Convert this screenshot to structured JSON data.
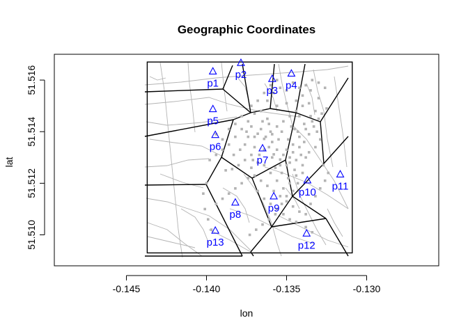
{
  "chart_data": {
    "type": "scatter",
    "title": "Geographic Coordinates",
    "xlabel": "lon",
    "ylabel": "lat",
    "xlim": [
      -0.1495,
      -0.1255
    ],
    "ylim": [
      51.5088,
      51.517
    ],
    "xticks": [
      -0.145,
      -0.14,
      -0.135,
      -0.13
    ],
    "xtick_labels": [
      "-0.145",
      "-0.140",
      "-0.135",
      "-0.130"
    ],
    "yticks": [
      51.51,
      51.512,
      51.514,
      51.516
    ],
    "ytick_labels": [
      "51.510",
      "51.512",
      "51.514",
      "51.516"
    ],
    "grid": false,
    "bounding_box": {
      "lon": [
        -0.1437,
        -0.1309
      ],
      "lat": [
        51.5093,
        51.5167
      ]
    },
    "pumps": {
      "marker": "triangle",
      "color": "#0000ff",
      "points": [
        {
          "label": "p1",
          "lon": -0.1396,
          "lat": 51.51634
        },
        {
          "label": "p2",
          "lon": -0.13785,
          "lat": 51.51667
        },
        {
          "label": "p3",
          "lon": -0.1359,
          "lat": 51.51605
        },
        {
          "label": "p4",
          "lon": -0.1347,
          "lat": 51.51626
        },
        {
          "label": "p5",
          "lon": -0.1396,
          "lat": 51.51488
        },
        {
          "label": "p6",
          "lon": -0.13945,
          "lat": 51.51388
        },
        {
          "label": "p7",
          "lon": -0.1365,
          "lat": 51.51336
        },
        {
          "label": "p8",
          "lon": -0.1382,
          "lat": 51.51126
        },
        {
          "label": "p9",
          "lon": -0.1358,
          "lat": 51.5115
        },
        {
          "label": "p10",
          "lon": -0.1337,
          "lat": 51.51212
        },
        {
          "label": "p11",
          "lon": -0.13165,
          "lat": 51.51235
        },
        {
          "label": "p12",
          "lon": -0.13375,
          "lat": 51.51006
        },
        {
          "label": "p13",
          "lon": -0.13945,
          "lat": 51.51017
        }
      ]
    },
    "cases": {
      "color": "#b3b3b3",
      "points": [
        [
          -0.1368,
          51.51392
        ],
        [
          -0.1364,
          51.51372
        ],
        [
          -0.1361,
          51.5134
        ],
        [
          -0.1358,
          51.51312
        ],
        [
          -0.1354,
          51.51292
        ],
        [
          -0.135,
          51.5127
        ],
        [
          -0.1345,
          51.51252
        ],
        [
          -0.137,
          51.5134
        ],
        [
          -0.1372,
          51.5131
        ],
        [
          -0.1376,
          51.5129
        ],
        [
          -0.138,
          51.5127
        ],
        [
          -0.1384,
          51.51255
        ],
        [
          -0.1388,
          51.5125
        ],
        [
          -0.1372,
          51.5126
        ],
        [
          -0.137,
          51.5123
        ],
        [
          -0.1366,
          51.5121
        ],
        [
          -0.1362,
          51.5119
        ],
        [
          -0.1358,
          51.5117
        ],
        [
          -0.1354,
          51.5115
        ],
        [
          -0.135,
          51.5113
        ],
        [
          -0.1346,
          51.5111
        ],
        [
          -0.1342,
          51.5109
        ],
        [
          -0.136,
          51.514
        ],
        [
          -0.1356,
          51.5142
        ],
        [
          -0.1352,
          51.5144
        ],
        [
          -0.1348,
          51.5146
        ],
        [
          -0.1344,
          51.5148
        ],
        [
          -0.134,
          51.515
        ],
        [
          -0.1336,
          51.5151
        ],
        [
          -0.1332,
          51.5148
        ],
        [
          -0.1334,
          51.5144
        ],
        [
          -0.1338,
          51.5141
        ],
        [
          -0.1342,
          51.5138
        ],
        [
          -0.1346,
          51.5135
        ],
        [
          -0.135,
          51.5133
        ],
        [
          -0.1355,
          51.5137
        ],
        [
          -0.1362,
          51.5145
        ],
        [
          -0.1366,
          51.5148
        ],
        [
          -0.137,
          51.5147
        ],
        [
          -0.1374,
          51.5144
        ],
        [
          -0.1378,
          51.5141
        ],
        [
          -0.1382,
          51.5138
        ],
        [
          -0.1386,
          51.5135
        ],
        [
          -0.139,
          51.5133
        ],
        [
          -0.1394,
          51.5131
        ],
        [
          -0.1398,
          51.5129
        ],
        [
          -0.1374,
          51.5138
        ],
        [
          -0.1376,
          51.5135
        ],
        [
          -0.1379,
          51.5133
        ],
        [
          -0.1383,
          51.5131
        ],
        [
          -0.1366,
          51.5141
        ],
        [
          -0.1363,
          51.5138
        ],
        [
          -0.1359,
          51.5136
        ],
        [
          -0.1356,
          51.5133
        ],
        [
          -0.1352,
          51.5131
        ],
        [
          -0.1348,
          51.513
        ],
        [
          -0.1346,
          51.5132
        ],
        [
          -0.1342,
          51.5134
        ],
        [
          -0.1339,
          51.5136
        ],
        [
          -0.1336,
          51.5139
        ],
        [
          -0.1333,
          51.5142
        ],
        [
          -0.133,
          51.5145
        ],
        [
          -0.1328,
          51.5147
        ],
        [
          -0.1325,
          51.5149
        ],
        [
          -0.133,
          51.5153
        ],
        [
          -0.1335,
          51.5156
        ],
        [
          -0.134,
          51.5154
        ],
        [
          -0.1344,
          51.5152
        ],
        [
          -0.135,
          51.5151
        ],
        [
          -0.1356,
          51.515
        ],
        [
          -0.1362,
          51.5152
        ],
        [
          -0.1358,
          51.5155
        ],
        [
          -0.1354,
          51.5157
        ],
        [
          -0.135,
          51.5156
        ],
        [
          -0.1346,
          51.5159
        ],
        [
          -0.1342,
          51.5146
        ],
        [
          -0.1338,
          51.513
        ],
        [
          -0.134,
          51.5127
        ],
        [
          -0.1344,
          51.5123
        ],
        [
          -0.1348,
          51.512
        ],
        [
          -0.1352,
          51.5118
        ],
        [
          -0.1356,
          51.5121
        ],
        [
          -0.136,
          51.5124
        ],
        [
          -0.1364,
          51.5127
        ],
        [
          -0.1368,
          51.5128
        ],
        [
          -0.1374,
          51.5122
        ],
        [
          -0.1378,
          51.512
        ],
        [
          -0.1382,
          51.5118
        ],
        [
          -0.1386,
          51.5116
        ],
        [
          -0.139,
          51.5114
        ],
        [
          -0.1394,
          51.5112
        ],
        [
          -0.1368,
          51.5117
        ],
        [
          -0.1364,
          51.5114
        ],
        [
          -0.136,
          51.5112
        ],
        [
          -0.1356,
          51.511
        ],
        [
          -0.1352,
          51.5108
        ],
        [
          -0.1348,
          51.5106
        ],
        [
          -0.1344,
          51.5105
        ],
        [
          -0.1338,
          51.5103
        ],
        [
          -0.1334,
          51.5101
        ],
        [
          -0.1394,
          51.5139
        ],
        [
          -0.139,
          51.5137
        ],
        [
          -0.1386,
          51.5141
        ],
        [
          -0.1382,
          51.5143
        ],
        [
          -0.1378,
          51.5146
        ],
        [
          -0.1372,
          51.515
        ],
        [
          -0.1368,
          51.5152
        ],
        [
          -0.1364,
          51.5155
        ],
        [
          -0.136,
          51.5158
        ],
        [
          -0.1356,
          51.516
        ],
        [
          -0.1347,
          51.5142
        ],
        [
          -0.1343,
          51.514
        ],
        [
          -0.1339,
          51.5143
        ],
        [
          -0.1335,
          51.5146
        ],
        [
          -0.1331,
          51.514
        ],
        [
          -0.1329,
          51.5137
        ],
        [
          -0.1332,
          51.5134
        ],
        [
          -0.1336,
          51.5132
        ],
        [
          -0.134,
          51.5124
        ],
        [
          -0.1343,
          51.512
        ],
        [
          -0.1346,
          51.5117
        ],
        [
          -0.135,
          51.5115
        ],
        [
          -0.1353,
          51.5112
        ],
        [
          -0.1357,
          51.5108
        ],
        [
          -0.1361,
          51.5106
        ],
        [
          -0.1365,
          51.5104
        ],
        [
          -0.1369,
          51.5102
        ],
        [
          -0.1373,
          51.51
        ],
        [
          -0.1338,
          51.5108
        ],
        [
          -0.1335,
          51.5112
        ],
        [
          -0.1332,
          51.5115
        ],
        [
          -0.1329,
          51.5118
        ],
        [
          -0.1326,
          51.5121
        ],
        [
          -0.1324,
          51.5124
        ],
        [
          -0.1327,
          51.5127
        ],
        [
          -0.14,
          51.512
        ],
        [
          -0.1402,
          51.5116
        ],
        [
          -0.1401,
          51.511
        ],
        [
          -0.1399,
          51.5106
        ],
        [
          -0.1397,
          51.5102
        ],
        [
          -0.137,
          51.5138
        ],
        [
          -0.1359,
          51.5139
        ],
        [
          -0.1353,
          51.514
        ],
        [
          -0.1349,
          51.5137
        ],
        [
          -0.1345,
          51.5141
        ],
        [
          -0.1357,
          51.5126
        ],
        [
          -0.1353,
          51.5124
        ],
        [
          -0.1349,
          51.5122
        ],
        [
          -0.1367,
          51.5131
        ],
        [
          -0.1371,
          51.5129
        ],
        [
          -0.1348,
          51.5128
        ],
        [
          -0.1344,
          51.5129
        ],
        [
          -0.1341,
          51.5131
        ],
        [
          -0.1361,
          51.5143
        ],
        [
          -0.1365,
          51.5144
        ],
        [
          -0.1342,
          51.5157
        ],
        [
          -0.1338,
          51.5158
        ],
        [
          -0.1334,
          51.516
        ],
        [
          -0.133,
          51.5159
        ],
        [
          -0.1326,
          51.5157
        ],
        [
          -0.1372,
          51.5142
        ],
        [
          -0.1375,
          51.514
        ],
        [
          -0.1364,
          51.5133
        ],
        [
          -0.1359,
          51.513
        ],
        [
          -0.1354,
          51.5127
        ]
      ]
    }
  }
}
